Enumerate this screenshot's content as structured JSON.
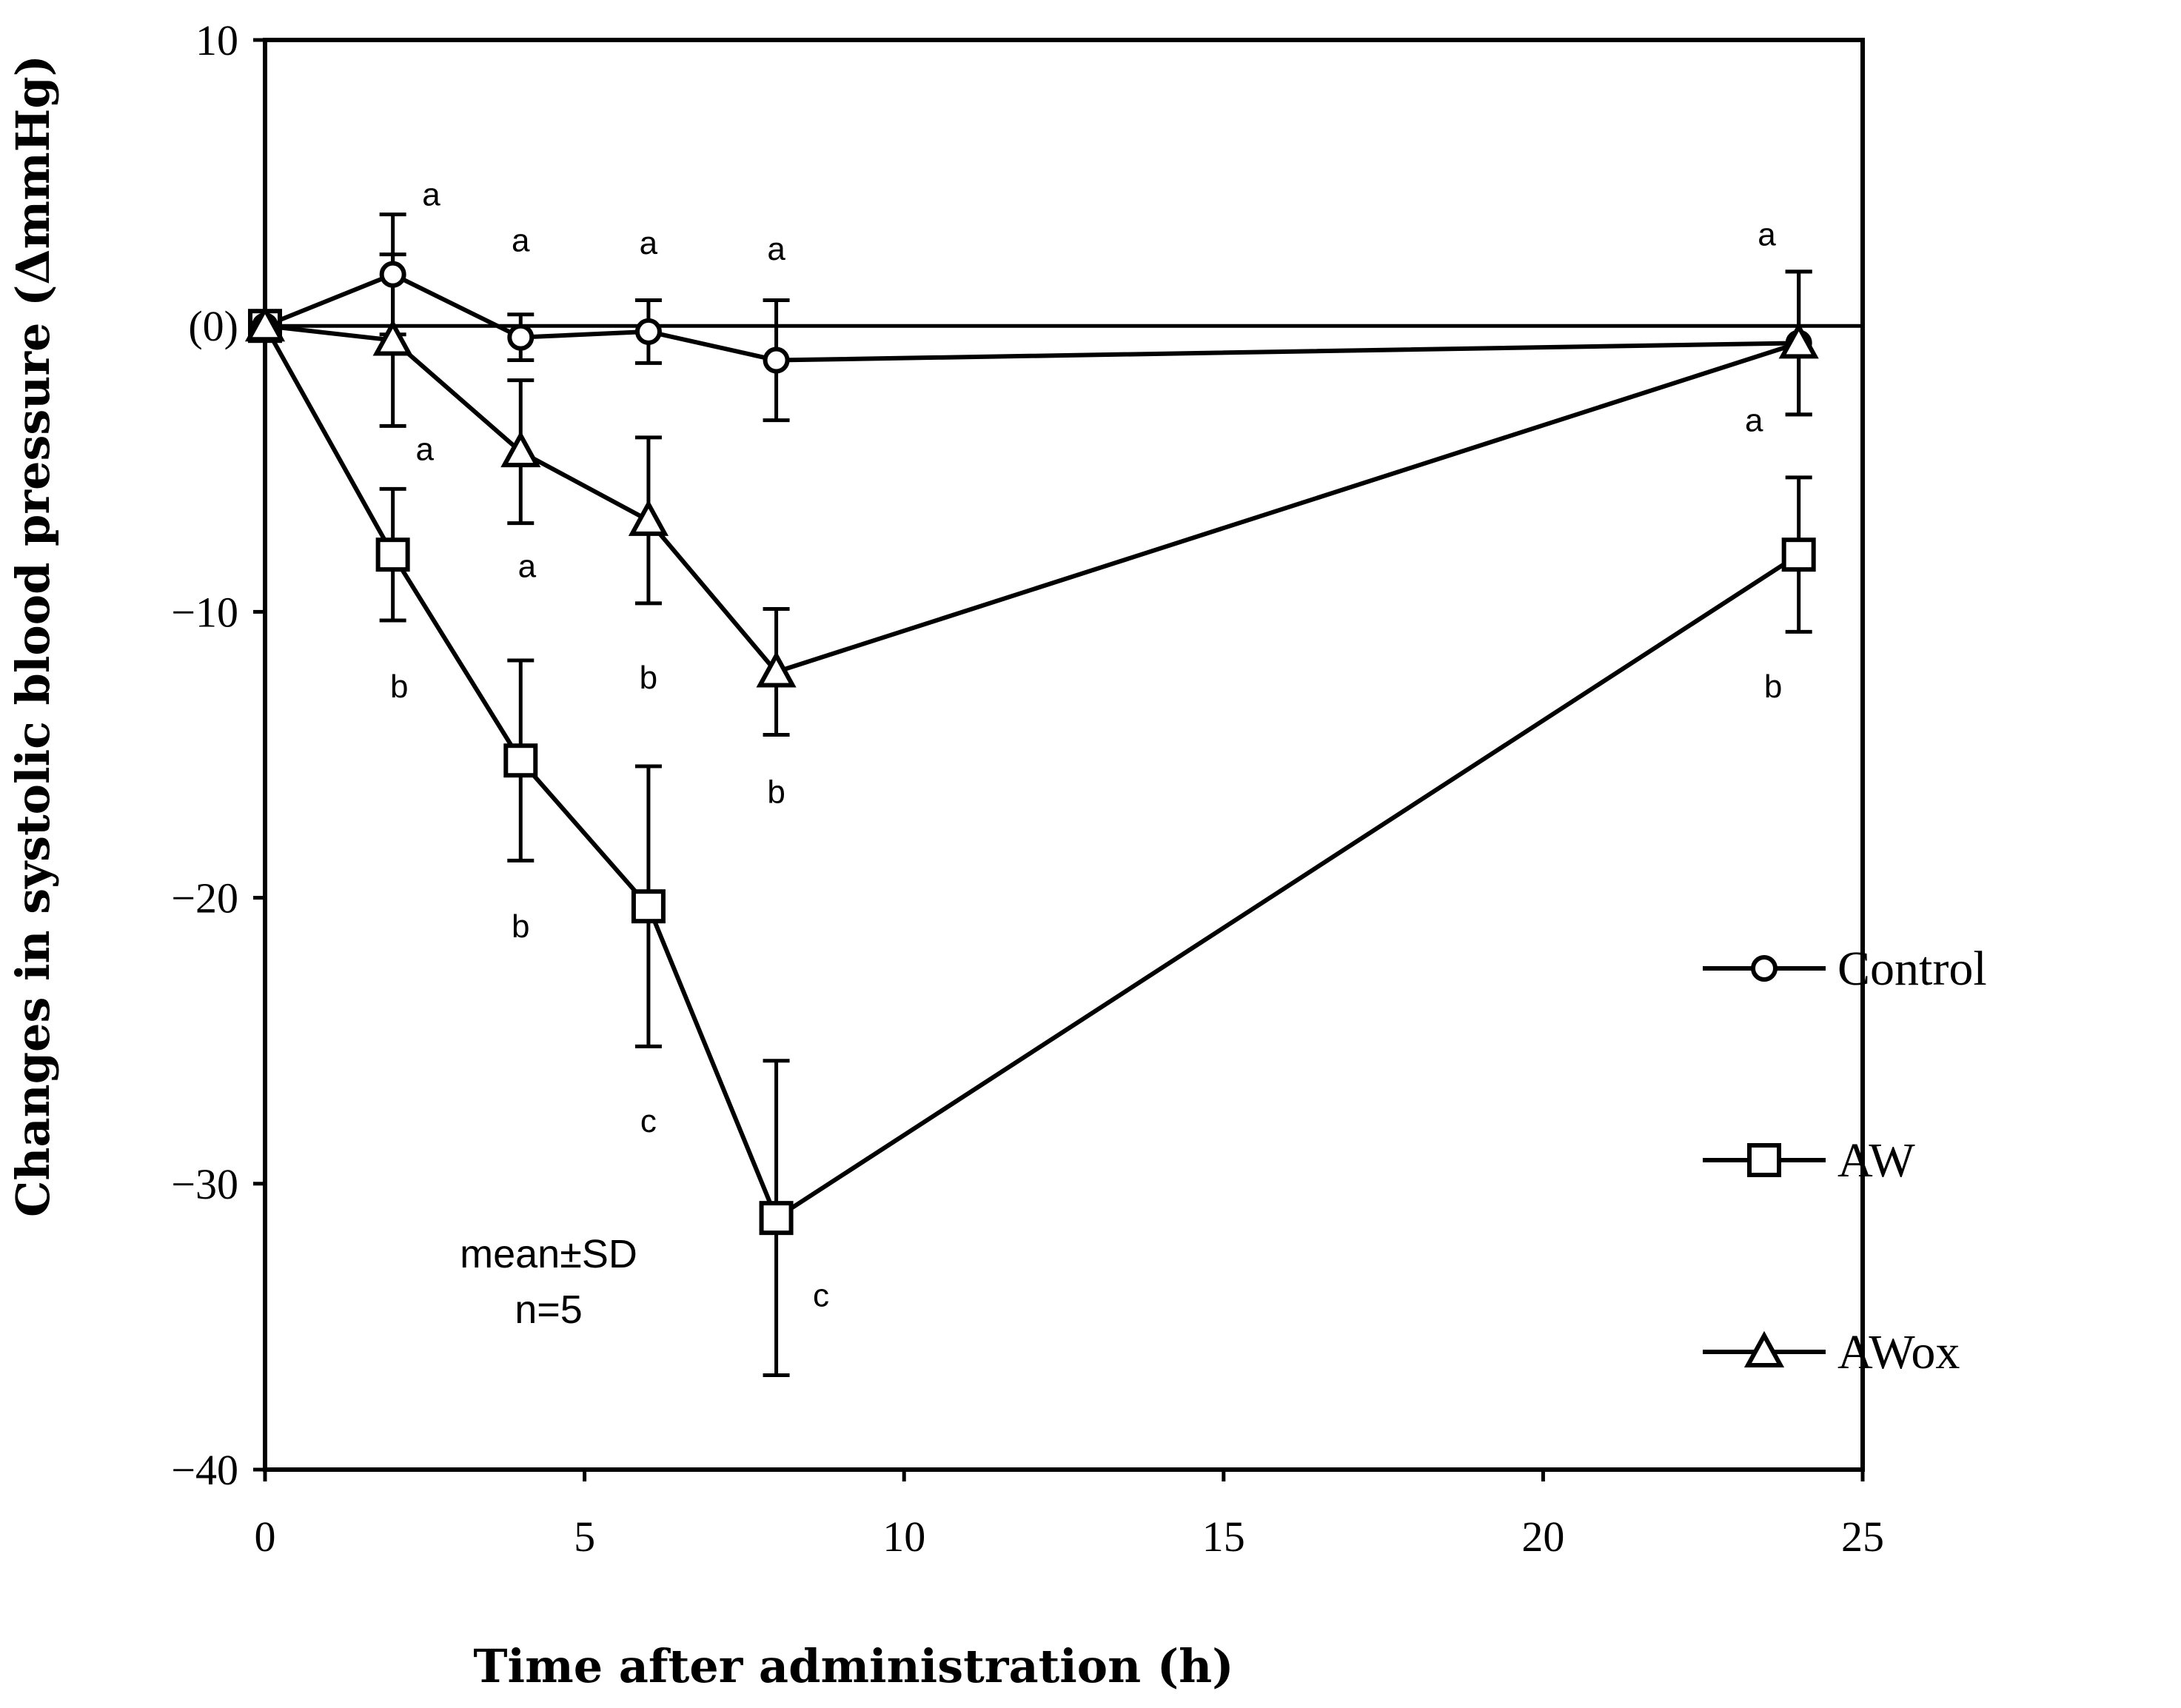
{
  "chart_data": {
    "type": "line",
    "xlabel": "Time after administration (h)",
    "ylabel": "Changes in systolic blood pressure (ΔmmHg)",
    "xlim": [
      0,
      25
    ],
    "ylim": [
      -40,
      10
    ],
    "x_ticks": [
      0,
      5,
      10,
      15,
      20,
      25
    ],
    "x_tick_labels": [
      "0",
      "5",
      "10",
      "15",
      "20",
      "25"
    ],
    "y_ticks": [
      10,
      0,
      -10,
      -20,
      -30,
      -40
    ],
    "y_tick_labels": [
      "10",
      "(0)",
      "−10",
      "−20",
      "−30",
      "−40"
    ],
    "grid": false,
    "reference_line": 0,
    "legend_position": "lower-right",
    "x": [
      0,
      2,
      4,
      6,
      8,
      24
    ],
    "series": [
      {
        "name": "Control",
        "marker": "circle",
        "values": [
          0,
          1.8,
          -0.4,
          -0.2,
          -1.2,
          -0.6
        ],
        "errors": [
          0,
          2.1,
          0.8,
          1.1,
          2.1,
          2.5
        ]
      },
      {
        "name": "AW",
        "marker": "square",
        "values": [
          0,
          -8.0,
          -15.2,
          -20.3,
          -31.2,
          -8.0
        ],
        "errors": [
          0,
          2.3,
          3.5,
          4.9,
          5.5,
          2.7
        ]
      },
      {
        "name": "AWox",
        "marker": "triangle",
        "values": [
          0,
          -0.5,
          -4.4,
          -6.8,
          -12.1,
          -0.6
        ],
        "errors": [
          0,
          3.0,
          2.5,
          2.9,
          2.2,
          2.5
        ]
      }
    ],
    "annotations": [
      {
        "text": "a",
        "x": 2.6,
        "y": 4.6
      },
      {
        "text": "a",
        "x": 4.0,
        "y": 3.0
      },
      {
        "text": "a",
        "x": 6.0,
        "y": 2.9
      },
      {
        "text": "a",
        "x": 8.0,
        "y": 2.7
      },
      {
        "text": "a",
        "x": 23.5,
        "y": 3.2
      },
      {
        "text": "a",
        "x": 2.5,
        "y": -4.3
      },
      {
        "text": "a",
        "x": 4.1,
        "y": -8.4
      },
      {
        "text": "a",
        "x": 23.3,
        "y": -3.3
      },
      {
        "text": "b",
        "x": 2.1,
        "y": -12.6
      },
      {
        "text": "b",
        "x": 6.0,
        "y": -12.3
      },
      {
        "text": "b",
        "x": 8.0,
        "y": -16.3
      },
      {
        "text": "b",
        "x": 23.6,
        "y": -12.6
      },
      {
        "text": "b",
        "x": 4.0,
        "y": -21.0
      },
      {
        "text": "c",
        "x": 6.0,
        "y": -27.8
      },
      {
        "text": "c",
        "x": 8.7,
        "y": -33.9
      }
    ],
    "notes": [
      "mean±SD",
      "n=5"
    ]
  }
}
